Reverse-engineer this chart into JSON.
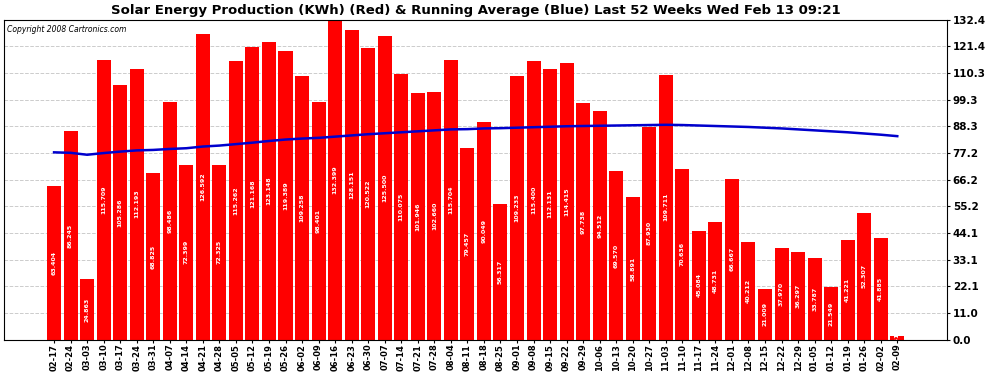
{
  "title": "Solar Energy Production (KWh) (Red) & Running Average (Blue) Last 52 Weeks Wed Feb 13 09:21",
  "copyright": "Copyright 2008 Cartronics.com",
  "bar_color": "#FF0000",
  "avg_line_color": "#0000CD",
  "background_color": "#FFFFFF",
  "grid_color": "#CCCCCC",
  "ylim": [
    0.0,
    132.4
  ],
  "yticks": [
    0.0,
    11.0,
    22.1,
    33.1,
    44.1,
    55.2,
    66.2,
    77.2,
    88.3,
    99.3,
    110.3,
    121.4,
    132.4
  ],
  "dates": [
    "02-17",
    "02-24",
    "03-03",
    "03-10",
    "03-17",
    "03-24",
    "03-31",
    "04-07",
    "04-14",
    "04-21",
    "04-28",
    "05-05",
    "05-12",
    "05-19",
    "05-26",
    "06-02",
    "06-09",
    "06-16",
    "06-23",
    "06-30",
    "07-07",
    "07-14",
    "07-21",
    "07-28",
    "08-04",
    "08-11",
    "08-18",
    "08-25",
    "09-01",
    "09-08",
    "09-15",
    "09-22",
    "09-29",
    "10-06",
    "10-13",
    "10-20",
    "10-27",
    "11-03",
    "11-10",
    "11-17",
    "11-24",
    "12-01",
    "12-08",
    "12-15",
    "12-22",
    "12-29",
    "01-05",
    "01-12",
    "01-19",
    "01-26",
    "02-02",
    "02-09"
  ],
  "values": [
    63.404,
    86.245,
    24.863,
    115.709,
    105.286,
    112.193,
    68.825,
    98.486,
    72.399,
    126.592,
    72.325,
    115.262,
    121.168,
    123.148,
    119.389,
    109.258,
    98.401,
    132.399,
    128.151,
    120.522,
    125.5,
    110.075,
    101.946,
    102.66,
    115.704,
    79.457,
    90.049,
    56.317,
    109.233,
    115.4,
    112.131,
    114.415,
    97.738,
    94.512,
    69.57,
    58.891,
    87.93,
    109.711,
    70.636,
    45.084,
    48.731,
    66.667,
    40.212,
    21.009,
    37.97,
    36.297,
    33.787,
    21.549,
    41.221,
    52.307,
    41.885,
    1.413
  ],
  "running_avg": [
    77.5,
    77.3,
    76.5,
    77.2,
    77.8,
    78.3,
    78.5,
    78.9,
    79.2,
    79.9,
    80.3,
    80.9,
    81.5,
    82.2,
    82.8,
    83.2,
    83.5,
    84.0,
    84.5,
    85.0,
    85.4,
    85.8,
    86.2,
    86.6,
    87.0,
    87.1,
    87.4,
    87.5,
    87.7,
    87.9,
    88.1,
    88.3,
    88.4,
    88.5,
    88.6,
    88.7,
    88.8,
    88.9,
    88.8,
    88.6,
    88.4,
    88.2,
    88.0,
    87.7,
    87.4,
    87.0,
    86.6,
    86.2,
    85.8,
    85.3,
    84.8,
    84.2
  ],
  "label_values": [
    "63.404",
    "86.245",
    "24.863",
    "115.709",
    "105.286",
    "112.193",
    "68.825",
    "98.486",
    "72.399",
    "126.592",
    "72.325",
    "115.262",
    "121.168",
    "123.148",
    "119.389",
    "109.258",
    "98.401",
    "132.399",
    "128.151",
    "120.522",
    "125.500",
    "110.075",
    "101.946",
    "102.660",
    "115.704",
    "79.457",
    "90.049",
    "56.317",
    "109.233",
    "115.400",
    "112.131",
    "114.415",
    "97.738",
    "94.512",
    "69.570",
    "58.891",
    "87.930",
    "109.711",
    "70.636",
    "45.084",
    "48.731",
    "66.667",
    "40.212",
    "21.009",
    "37.970",
    "36.297",
    "33.787",
    "21.549",
    "41.221",
    "52.307",
    "41.885",
    "1.413"
  ]
}
